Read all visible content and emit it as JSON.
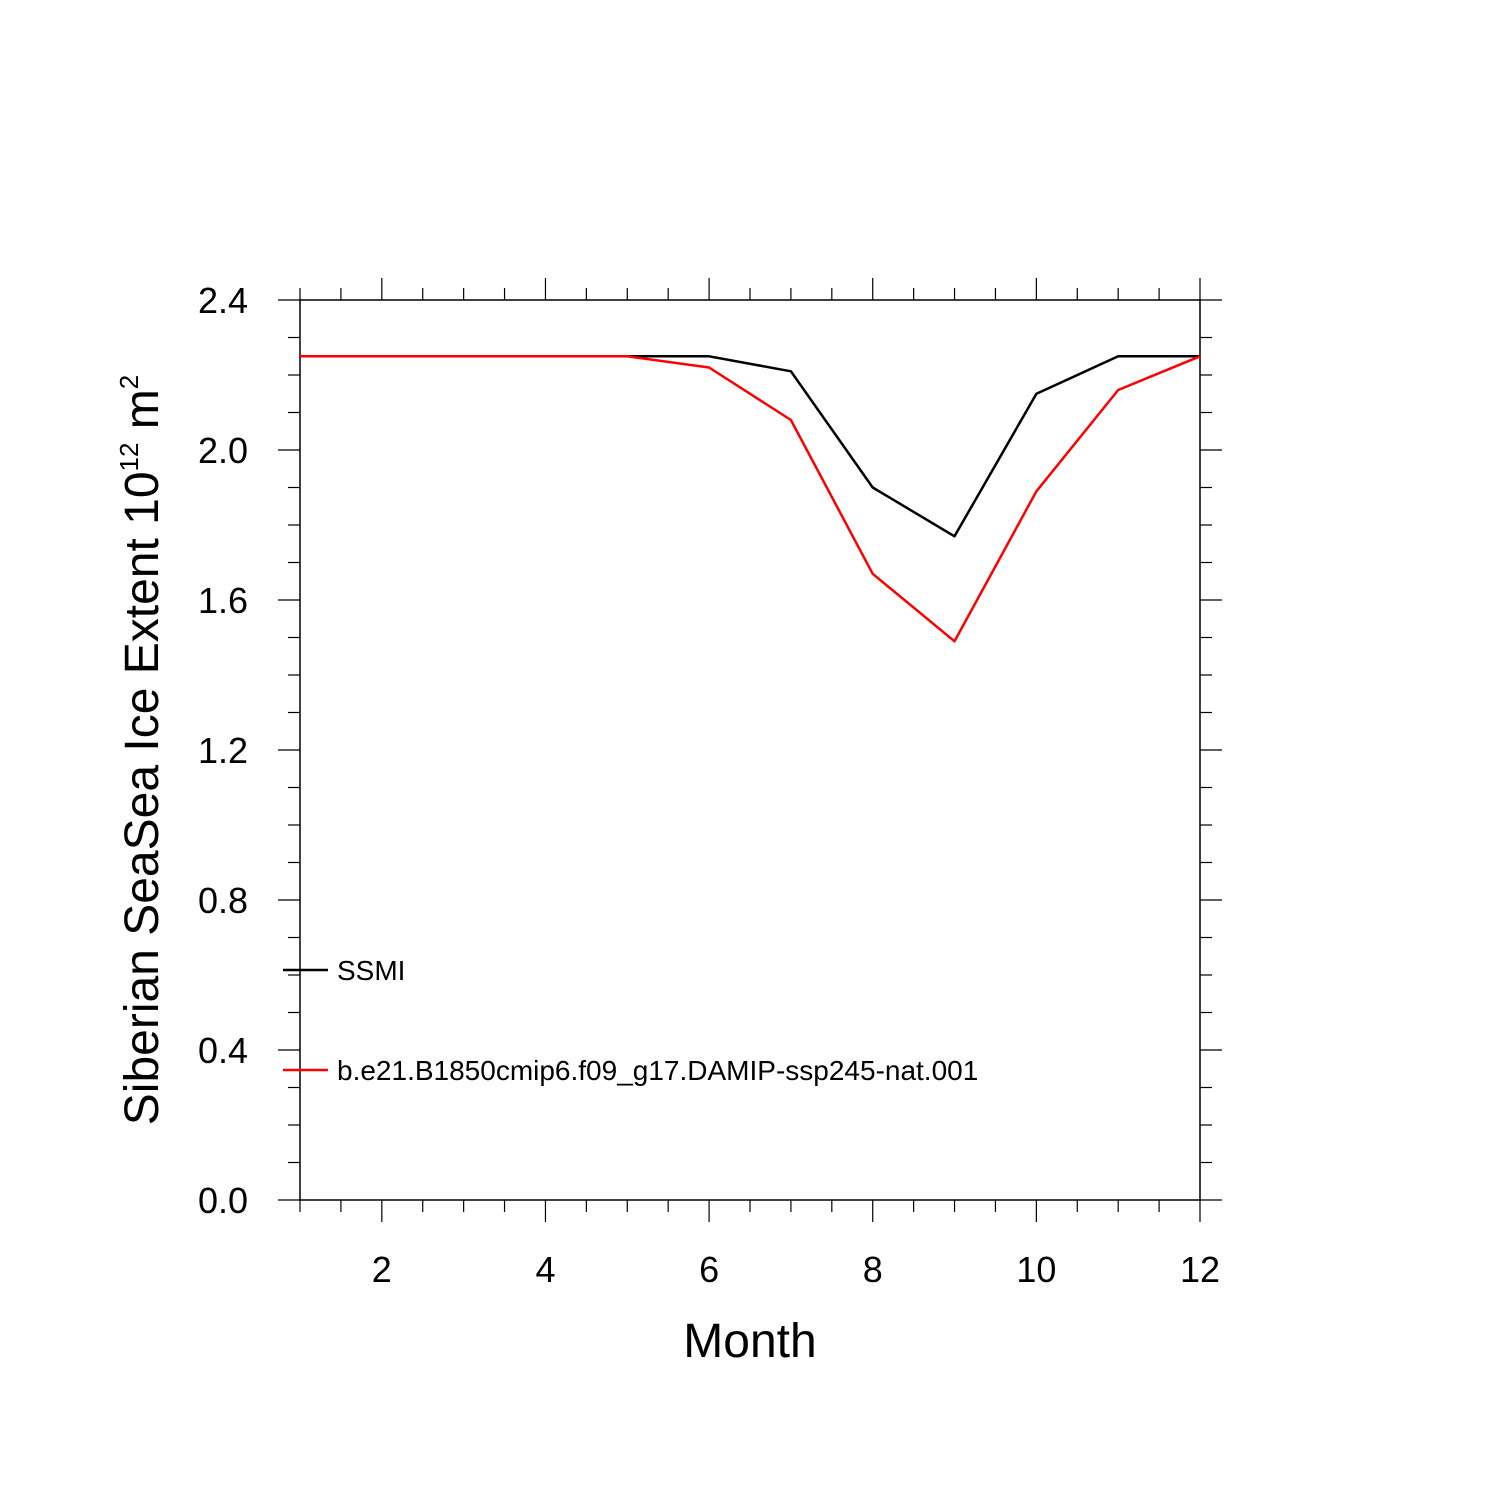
{
  "chart_data": {
    "type": "line",
    "xlabel": "Month",
    "ylabel_main": "Siberian SeaSea Ice Extent 10",
    "ylabel_exp": "12",
    "ylabel_unit": " m",
    "ylabel_unit_exp": "2",
    "xlim": [
      1,
      12
    ],
    "ylim": [
      0.0,
      2.4
    ],
    "x_ticks": [
      2,
      4,
      6,
      8,
      10,
      12
    ],
    "x_tick_labels": [
      "2",
      "4",
      "6",
      "8",
      "10",
      "12"
    ],
    "y_ticks": [
      0.0,
      0.4,
      0.8,
      1.2,
      1.6,
      2.0,
      2.4
    ],
    "y_tick_labels": [
      "0.0",
      "0.4",
      "0.8",
      "1.2",
      "1.6",
      "2.0",
      "2.4"
    ],
    "grid": false,
    "legend_position": "left-lower",
    "x": [
      1,
      2,
      3,
      4,
      5,
      6,
      7,
      8,
      9,
      10,
      11,
      12
    ],
    "series": [
      {
        "name": "SSMI",
        "color": "#000000",
        "values": [
          2.25,
          2.25,
          2.25,
          2.25,
          2.25,
          2.25,
          2.21,
          1.9,
          1.77,
          2.15,
          2.25,
          2.25
        ]
      },
      {
        "name": "b.e21.B1850cmip6.f09_g17.DAMIP-ssp245-nat.001",
        "color": "#ff0000",
        "values": [
          2.25,
          2.25,
          2.25,
          2.25,
          2.25,
          2.22,
          2.08,
          1.67,
          1.49,
          1.89,
          2.16,
          2.25
        ]
      }
    ]
  }
}
